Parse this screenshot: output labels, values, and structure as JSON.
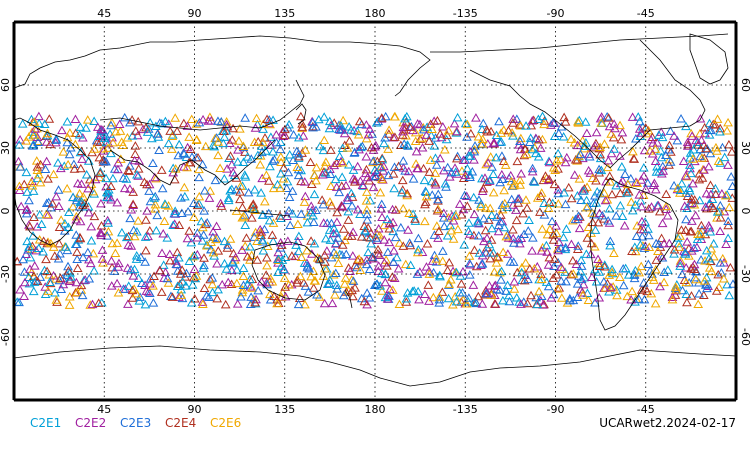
{
  "map": {
    "projection": "cylindrical",
    "lon_ticks": [
      "45",
      "90",
      "135",
      "180",
      "-135",
      "-90",
      "-45"
    ],
    "lat_ticks": [
      "60",
      "30",
      "0",
      "-30",
      "-60"
    ],
    "grid": "dotted",
    "observation_lat_range": [
      -45,
      45
    ],
    "marker_shape": "triangle"
  },
  "legend": {
    "items": [
      {
        "label": "C2E1",
        "color": "#00a0d8"
      },
      {
        "label": "C2E2",
        "color": "#a020a0"
      },
      {
        "label": "C2E3",
        "color": "#1e6ed8"
      },
      {
        "label": "C2E4",
        "color": "#b03020"
      },
      {
        "label": "C2E6",
        "color": "#f0a800"
      }
    ]
  },
  "footer": {
    "label": "UCARwet2.2024-02-17"
  }
}
